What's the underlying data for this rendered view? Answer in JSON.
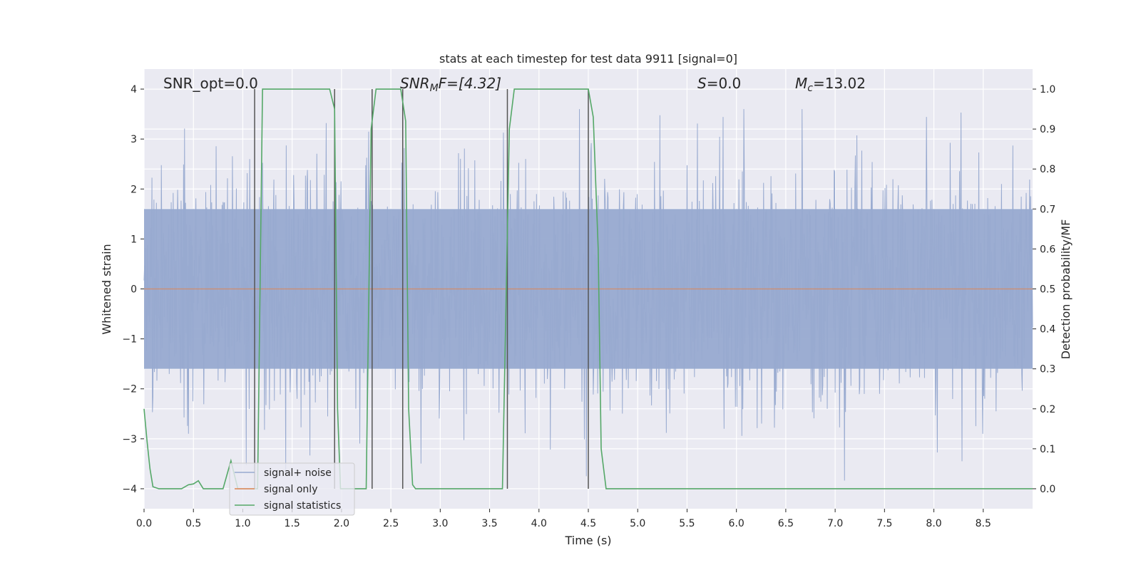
{
  "chart_data": {
    "type": "line",
    "title": "stats at each timestep for test data 9911 [signal=0]",
    "xlabel": "Time (s)",
    "ylabel_left": "Whitened strain",
    "ylabel_right": "Detection probability/MF",
    "xlim": [
      0.0,
      9.0
    ],
    "ylim_left": [
      -4.4,
      4.4
    ],
    "ylim_right": [
      -0.05,
      1.05
    ],
    "xticks": [
      0.0,
      0.5,
      1.0,
      1.5,
      2.0,
      2.5,
      3.0,
      3.5,
      4.0,
      4.5,
      5.0,
      5.5,
      6.0,
      6.5,
      7.0,
      7.5,
      8.0,
      8.5
    ],
    "xtick_labels": [
      "0.0",
      "0.5",
      "1.0",
      "1.5",
      "2.0",
      "2.5",
      "3.0",
      "3.5",
      "4.0",
      "4.5",
      "5.0",
      "5.5",
      "6.0",
      "6.5",
      "7.0",
      "7.5",
      "8.0",
      "8.5"
    ],
    "yticks_left": [
      -4,
      -3,
      -2,
      -1,
      0,
      1,
      2,
      3,
      4
    ],
    "ytick_labels_left": [
      "−4",
      "−3",
      "−2",
      "−1",
      "0",
      "1",
      "2",
      "3",
      "4"
    ],
    "yticks_right": [
      0.0,
      0.1,
      0.2,
      0.3,
      0.4,
      0.5,
      0.6,
      0.7,
      0.8,
      0.9,
      1.0
    ],
    "ytick_labels_right": [
      "0.0",
      "0.1",
      "0.2",
      "0.3",
      "0.4",
      "0.5",
      "0.6",
      "0.7",
      "0.8",
      "0.9",
      "1.0"
    ],
    "grid": true,
    "legend_placement": "lower-left",
    "annotations": {
      "snr_opt": "SNR_opt=0.0",
      "snr_mf": "SNR",
      "snr_mf_sub": "M",
      "snr_mf_rest": "F=[4.32]",
      "s_sym": "S",
      "s_rest": "=0.0",
      "mc_sym": "M",
      "mc_sub": "c",
      "mc_rest": "=13.02"
    },
    "series": [
      {
        "name": "signal+ noise",
        "axis": "left",
        "color": "#98aad0",
        "style": "dense noise band",
        "sample_rate_hz": 200,
        "seed": 9911,
        "peak_envelope": [
          3.6,
          -4.0
        ]
      },
      {
        "name": "signal only",
        "axis": "left",
        "color": "#dd8452",
        "x": [
          0.0,
          9.0
        ],
        "y": [
          0.0,
          0.0
        ]
      },
      {
        "name": "signal statistics",
        "axis": "right",
        "color": "#55a868",
        "x": [
          0.0,
          0.03,
          0.06,
          0.09,
          0.15,
          0.38,
          0.45,
          0.5,
          0.55,
          0.6,
          0.8,
          0.88,
          0.95,
          1.1,
          1.15,
          1.2,
          1.88,
          1.93,
          1.96,
          1.99,
          2.05,
          2.25,
          2.3,
          2.35,
          2.4,
          2.6,
          2.65,
          2.68,
          2.72,
          2.75,
          3.63,
          3.7,
          3.75,
          4.5,
          4.55,
          4.6,
          4.63,
          4.68,
          9.0
        ],
        "y": [
          0.2,
          0.12,
          0.05,
          0.005,
          0.0,
          0.0,
          0.01,
          0.012,
          0.02,
          0.0,
          0.0,
          0.07,
          0.0,
          0.0,
          0.0,
          1.0,
          1.0,
          0.95,
          0.2,
          0.0,
          0.0,
          0.0,
          0.9,
          1.0,
          1.0,
          1.0,
          0.92,
          0.2,
          0.01,
          0.0,
          0.0,
          0.9,
          1.0,
          1.0,
          0.93,
          0.6,
          0.1,
          0.0,
          0.0
        ]
      }
    ],
    "vertical_lines": {
      "axis": "right",
      "color": "#555555",
      "x": [
        1.12,
        1.93,
        2.31,
        2.62,
        3.68,
        4.5
      ],
      "y_range": [
        0.0,
        1.0
      ]
    }
  }
}
